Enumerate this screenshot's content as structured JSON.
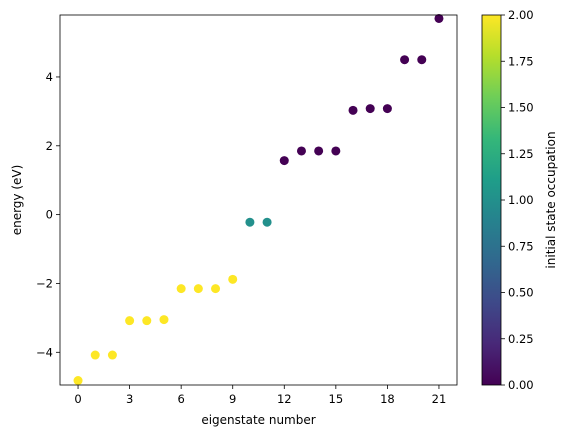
{
  "chart_data": {
    "type": "scatter",
    "title": "",
    "xlabel": "eigenstate number",
    "ylabel": "energy (eV)",
    "xlim": [
      -1.05,
      22.05
    ],
    "ylim": [
      -4.95,
      5.8
    ],
    "xticks": [
      0,
      3,
      6,
      9,
      12,
      15,
      18,
      21
    ],
    "yticks": [
      -4,
      -2,
      0,
      2,
      4
    ],
    "xtick_labels": [
      "0",
      "3",
      "6",
      "9",
      "12",
      "15",
      "18",
      "21"
    ],
    "ytick_labels": [
      "−4",
      "−2",
      "0",
      "2",
      "4"
    ],
    "grid": false,
    "colormap": "viridis",
    "points": [
      {
        "x": 0,
        "y": -4.82,
        "c": 2.0
      },
      {
        "x": 1,
        "y": -4.08,
        "c": 2.0
      },
      {
        "x": 2,
        "y": -4.08,
        "c": 2.0
      },
      {
        "x": 3,
        "y": -3.08,
        "c": 2.0
      },
      {
        "x": 4,
        "y": -3.08,
        "c": 2.0
      },
      {
        "x": 5,
        "y": -3.05,
        "c": 2.0
      },
      {
        "x": 6,
        "y": -2.15,
        "c": 2.0
      },
      {
        "x": 7,
        "y": -2.15,
        "c": 2.0
      },
      {
        "x": 8,
        "y": -2.15,
        "c": 2.0
      },
      {
        "x": 9,
        "y": -1.88,
        "c": 2.0
      },
      {
        "x": 10,
        "y": -0.22,
        "c": 1.0
      },
      {
        "x": 11,
        "y": -0.22,
        "c": 1.0
      },
      {
        "x": 12,
        "y": 1.57,
        "c": 0.0
      },
      {
        "x": 13,
        "y": 1.85,
        "c": 0.0
      },
      {
        "x": 14,
        "y": 1.85,
        "c": 0.0
      },
      {
        "x": 15,
        "y": 1.85,
        "c": 0.0
      },
      {
        "x": 16,
        "y": 3.03,
        "c": 0.0
      },
      {
        "x": 17,
        "y": 3.08,
        "c": 0.0
      },
      {
        "x": 18,
        "y": 3.08,
        "c": 0.0
      },
      {
        "x": 19,
        "y": 4.5,
        "c": 0.0
      },
      {
        "x": 20,
        "y": 4.5,
        "c": 0.0
      },
      {
        "x": 21,
        "y": 5.7,
        "c": 0.0
      }
    ],
    "colorbar": {
      "label": "initial state occupation",
      "range": [
        0.0,
        2.0
      ],
      "ticks": [
        0.0,
        0.25,
        0.5,
        0.75,
        1.0,
        1.25,
        1.5,
        1.75,
        2.0
      ],
      "tick_labels": [
        "0.00",
        "0.25",
        "0.50",
        "0.75",
        "1.00",
        "1.25",
        "1.50",
        "1.75",
        "2.00"
      ],
      "colors": [
        "#440154",
        "#482878",
        "#3e4989",
        "#31688e",
        "#26828e",
        "#1f9e89",
        "#35b779",
        "#6ece58",
        "#b5de2b",
        "#fde725"
      ]
    }
  }
}
